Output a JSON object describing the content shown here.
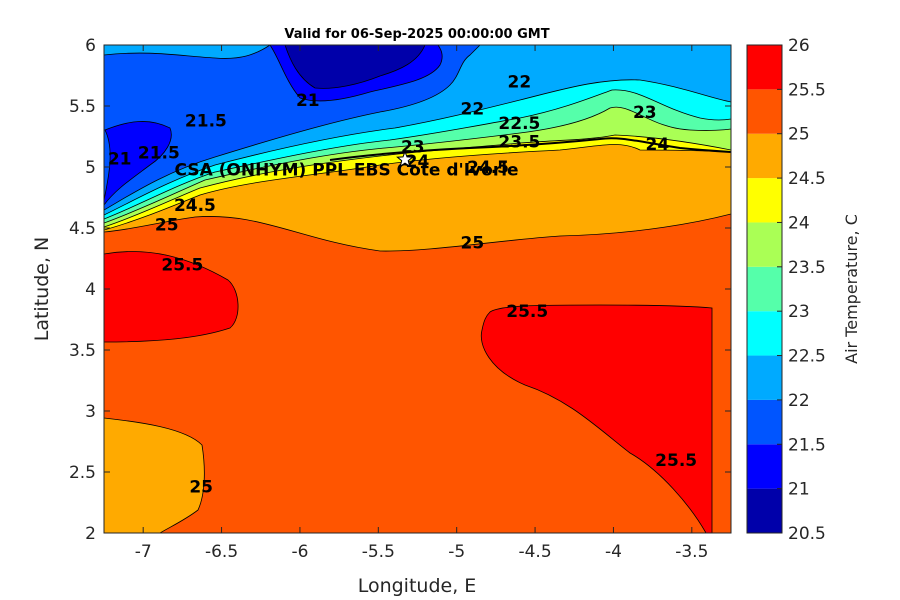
{
  "chart_data": {
    "type": "heatmap",
    "subtype": "filled-contour",
    "title": "Valid for 06-Sep-2025 00:00:00 GMT",
    "xlabel": "Longitude, E",
    "ylabel": "Latitude, N",
    "colorbar_label": "Air Temperature, C",
    "xlim": [
      -7.25,
      -3.25
    ],
    "ylim": [
      2,
      6
    ],
    "x_ticks": [
      -7,
      -6.5,
      -6,
      -5.5,
      -5,
      -4.5,
      -4,
      -3.5
    ],
    "y_ticks": [
      2,
      2.5,
      3,
      3.5,
      4,
      4.5,
      5,
      5.5,
      6
    ],
    "colorbar_ticks": [
      20.5,
      21,
      21.5,
      22,
      22.5,
      23,
      23.5,
      24,
      24.5,
      25,
      25.5,
      26
    ],
    "levels": [
      20.5,
      21,
      21.5,
      22,
      22.5,
      23,
      23.5,
      24,
      24.5,
      25,
      25.5,
      26
    ],
    "level_colors": [
      "#0000aa",
      "#0000ff",
      "#0055ff",
      "#00aaff",
      "#00ffff",
      "#55ffaa",
      "#aaff55",
      "#ffff00",
      "#ffaa00",
      "#ff5500",
      "#ff0000"
    ],
    "colorbar_top_color": "#aa0000",
    "contour_labels": [
      {
        "text": "21",
        "lon": -7.15,
        "lat": 5.07
      },
      {
        "text": "21.5",
        "lon": -6.9,
        "lat": 5.12
      },
      {
        "text": "21.5",
        "lon": -6.6,
        "lat": 5.38
      },
      {
        "text": "21",
        "lon": -5.95,
        "lat": 5.55
      },
      {
        "text": "22",
        "lon": -4.9,
        "lat": 5.48
      },
      {
        "text": "22",
        "lon": -4.6,
        "lat": 5.7
      },
      {
        "text": "22.5",
        "lon": -4.6,
        "lat": 5.36
      },
      {
        "text": "23.5",
        "lon": -4.6,
        "lat": 5.21
      },
      {
        "text": "23",
        "lon": -5.28,
        "lat": 5.17
      },
      {
        "text": "24",
        "lon": -5.25,
        "lat": 5.05
      },
      {
        "text": "24.5",
        "lon": -4.8,
        "lat": 5.0
      },
      {
        "text": "23",
        "lon": -3.8,
        "lat": 5.45
      },
      {
        "text": "24",
        "lon": -3.72,
        "lat": 5.19
      },
      {
        "text": "25",
        "lon": -6.85,
        "lat": 4.53
      },
      {
        "text": "24.5",
        "lon": -6.67,
        "lat": 4.69
      },
      {
        "text": "25",
        "lon": -4.9,
        "lat": 4.38
      },
      {
        "text": "25.5",
        "lon": -6.75,
        "lat": 4.2
      },
      {
        "text": "25.5",
        "lon": -4.55,
        "lat": 3.82
      },
      {
        "text": "25.5",
        "lon": -3.6,
        "lat": 2.6
      },
      {
        "text": "25",
        "lon": -6.63,
        "lat": 2.38
      }
    ],
    "annotations": [
      {
        "text": "CSA (ONHYM) PPL EBS   Cote d'Ivorie",
        "lon": -6.8,
        "lat": 4.93
      }
    ],
    "marker": {
      "symbol": "star",
      "lon": -5.33,
      "lat": 5.06
    },
    "grid": false,
    "legend": "none"
  }
}
